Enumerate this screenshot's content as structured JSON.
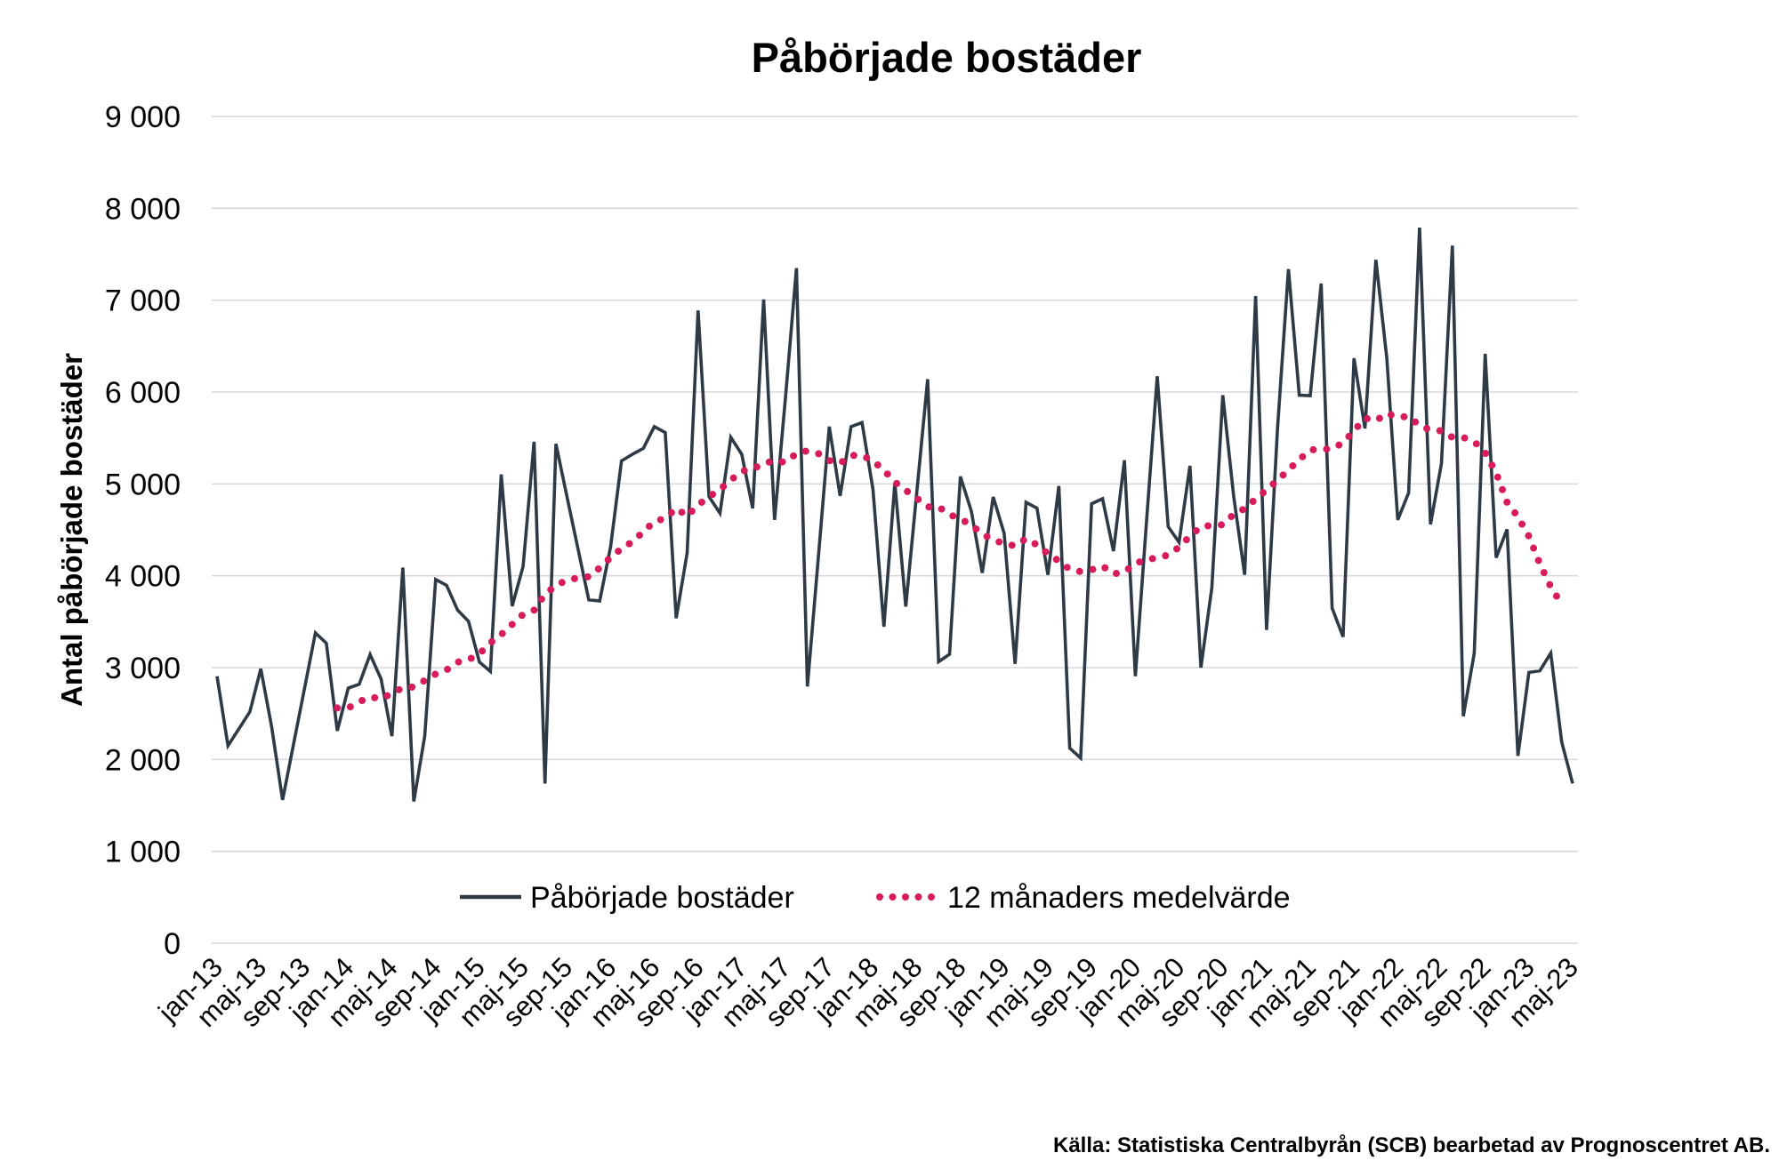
{
  "chart_data": {
    "type": "line",
    "title": "Påbörjade bostäder",
    "xlabel": "",
    "ylabel": "Antal påbörjade bostäder",
    "ylim": [
      0,
      9000
    ],
    "yticks": [
      0,
      1000,
      2000,
      3000,
      4000,
      5000,
      6000,
      7000,
      8000,
      9000
    ],
    "ytick_labels": [
      "0",
      "1 000",
      "2 000",
      "3 000",
      "4 000",
      "5 000",
      "6 000",
      "7 000",
      "8 000",
      "9 000"
    ],
    "grid": true,
    "legend_position": "bottom-center-inside",
    "x_start": "jan-13",
    "x_end": "maj-23",
    "x_tick_every": 4,
    "x_tick_labels": [
      "jan-13",
      "maj-13",
      "sep-13",
      "jan-14",
      "maj-14",
      "sep-14",
      "jan-15",
      "maj-15",
      "sep-15",
      "jan-16",
      "maj-16",
      "sep-16",
      "jan-17",
      "maj-17",
      "sep-17",
      "jan-18",
      "maj-18",
      "sep-18",
      "jan-19",
      "maj-19",
      "sep-19",
      "jan-20",
      "maj-20",
      "sep-20",
      "jan-21",
      "maj-21",
      "sep-21",
      "jan-22",
      "maj-22",
      "sep-22",
      "jan-23",
      "maj-23"
    ],
    "series": [
      {
        "name": "Påbörjade bostäder",
        "color": "#2e3a45",
        "style": "solid",
        "start_index": 0,
        "values": [
          2906,
          2150,
          2334,
          2519,
          2987,
          2350,
          1559,
          2166,
          2772,
          3378,
          3265,
          2312,
          2777,
          2819,
          3142,
          2877,
          2254,
          4089,
          1543,
          2254,
          3960,
          3895,
          3627,
          3504,
          3061,
          2958,
          5103,
          3669,
          4102,
          5459,
          1737,
          5436,
          4865,
          4303,
          3738,
          3726,
          4319,
          5250,
          5323,
          5387,
          5624,
          5559,
          3537,
          4247,
          6888,
          4861,
          4681,
          5507,
          5323,
          4733,
          7008,
          4608,
          5945,
          7349,
          2795,
          4199,
          5624,
          4869,
          5624,
          5668,
          4941,
          3445,
          5010,
          3665,
          4903,
          6139,
          3065,
          3145,
          5081,
          4703,
          4032,
          4858,
          4461,
          3042,
          4800,
          4735,
          4010,
          4977,
          2123,
          2016,
          4784,
          4839,
          4268,
          5258,
          2906,
          4558,
          6171,
          4535,
          4365,
          5197,
          3000,
          3871,
          5965,
          4860,
          4010,
          7045,
          3410,
          5600,
          7337,
          5966,
          5960,
          7182,
          3648,
          3335,
          6368,
          5603,
          7439,
          6368,
          4608,
          4903,
          7789,
          4560,
          5221,
          7594,
          2471,
          3158,
          6416,
          4197,
          4506,
          2039,
          2948,
          2965,
          3158,
          2190,
          1739
        ]
      },
      {
        "name": "12 månaders medelvärde",
        "color": "#d81b5a",
        "style": "dotted",
        "start_index": 11,
        "values": [
          2561,
          2561,
          2628,
          2680,
          2660,
          2720,
          2780,
          2790,
          2860,
          2930,
          2975,
          3060,
          3085,
          3150,
          3270,
          3360,
          3470,
          3580,
          3625,
          3800,
          3890,
          3955,
          3975,
          3990,
          4085,
          4200,
          4295,
          4370,
          4480,
          4590,
          4625,
          4735,
          4650,
          4770,
          4860,
          4940,
          5040,
          5140,
          5160,
          5225,
          5250,
          5235,
          5330,
          5360,
          5330,
          5255,
          5225,
          5310,
          5310,
          5250,
          5150,
          5020,
          4930,
          4845,
          4750,
          4750,
          4665,
          4620,
          4550,
          4455,
          4390,
          4350,
          4325,
          4405,
          4335,
          4240,
          4160,
          4070,
          4045,
          4065,
          4105,
          4020,
          4040,
          4135,
          4175,
          4195,
          4225,
          4310,
          4430,
          4535,
          4548,
          4555,
          4670,
          4730,
          4835,
          4935,
          5040,
          5150,
          5265,
          5370,
          5377,
          5381,
          5448,
          5577,
          5716,
          5687,
          5768,
          5726,
          5735,
          5635,
          5587,
          5577,
          5506,
          5505,
          5460,
          5340,
          5120,
          4800,
          4640,
          4430,
          4130,
          3880,
          3690
        ]
      }
    ],
    "source": "Källa: Statistiska Centralbyrån (SCB) bearbetad av Prognoscentret AB."
  }
}
